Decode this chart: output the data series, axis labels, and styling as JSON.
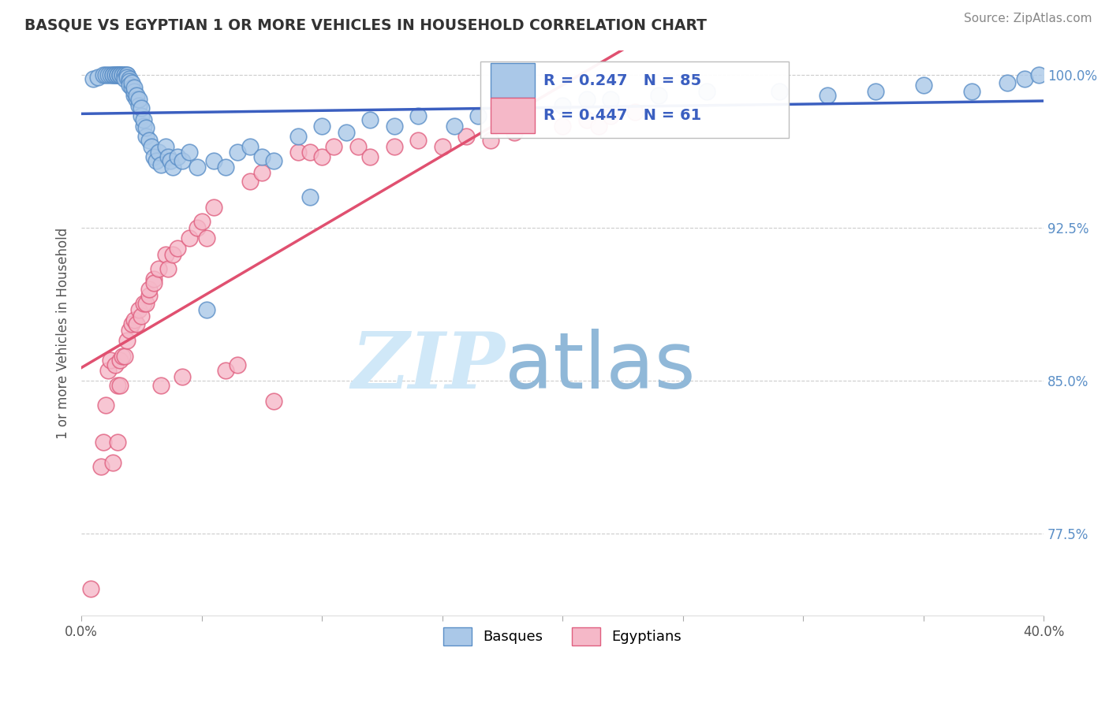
{
  "title": "BASQUE VS EGYPTIAN 1 OR MORE VEHICLES IN HOUSEHOLD CORRELATION CHART",
  "source_text": "Source: ZipAtlas.com",
  "ylabel": "1 or more Vehicles in Household",
  "xlim": [
    0.0,
    0.4
  ],
  "ylim": [
    0.735,
    1.012
  ],
  "ytick_labels": [
    "77.5%",
    "85.0%",
    "92.5%",
    "100.0%"
  ],
  "ytick_vals": [
    0.775,
    0.85,
    0.925,
    1.0
  ],
  "xtick_vals": [
    0.0,
    0.05,
    0.1,
    0.15,
    0.2,
    0.25,
    0.3,
    0.35,
    0.4
  ],
  "basque_color": "#aac8e8",
  "basque_edge_color": "#5b8fc7",
  "egyptian_color": "#f5b8c8",
  "egyptian_edge_color": "#e06080",
  "basque_line_color": "#3b5fc0",
  "egyptian_line_color": "#e05070",
  "legend_R_basque": "R = 0.247",
  "legend_N_basque": "N = 85",
  "legend_R_egyptian": "R = 0.447",
  "legend_N_egyptian": "N = 61",
  "basque_x": [
    0.005,
    0.007,
    0.009,
    0.01,
    0.011,
    0.012,
    0.013,
    0.013,
    0.014,
    0.014,
    0.015,
    0.015,
    0.015,
    0.016,
    0.016,
    0.016,
    0.017,
    0.017,
    0.018,
    0.018,
    0.018,
    0.019,
    0.019,
    0.019,
    0.02,
    0.02,
    0.02,
    0.021,
    0.021,
    0.022,
    0.022,
    0.022,
    0.023,
    0.023,
    0.024,
    0.024,
    0.025,
    0.025,
    0.026,
    0.026,
    0.027,
    0.027,
    0.028,
    0.029,
    0.03,
    0.031,
    0.032,
    0.033,
    0.035,
    0.036,
    0.037,
    0.038,
    0.04,
    0.042,
    0.045,
    0.048,
    0.052,
    0.055,
    0.06,
    0.065,
    0.07,
    0.075,
    0.08,
    0.09,
    0.095,
    0.1,
    0.11,
    0.12,
    0.13,
    0.14,
    0.155,
    0.165,
    0.2,
    0.21,
    0.22,
    0.24,
    0.26,
    0.29,
    0.31,
    0.33,
    0.35,
    0.37,
    0.385,
    0.392,
    0.398
  ],
  "basque_y": [
    0.998,
    0.999,
    1.0,
    1.0,
    1.0,
    1.0,
    1.0,
    1.0,
    1.0,
    1.0,
    1.0,
    1.0,
    1.0,
    1.0,
    1.0,
    1.0,
    1.0,
    1.0,
    1.0,
    1.0,
    0.998,
    1.0,
    1.0,
    0.999,
    0.998,
    0.997,
    0.995,
    0.994,
    0.996,
    0.99,
    0.992,
    0.994,
    0.988,
    0.99,
    0.985,
    0.988,
    0.98,
    0.984,
    0.975,
    0.978,
    0.97,
    0.974,
    0.968,
    0.965,
    0.96,
    0.958,
    0.962,
    0.956,
    0.965,
    0.96,
    0.958,
    0.955,
    0.96,
    0.958,
    0.962,
    0.955,
    0.885,
    0.958,
    0.955,
    0.962,
    0.965,
    0.96,
    0.958,
    0.97,
    0.94,
    0.975,
    0.972,
    0.978,
    0.975,
    0.98,
    0.975,
    0.98,
    0.985,
    0.988,
    0.988,
    0.99,
    0.992,
    0.992,
    0.99,
    0.992,
    0.995,
    0.992,
    0.996,
    0.998,
    1.0
  ],
  "egyptian_x": [
    0.004,
    0.008,
    0.009,
    0.01,
    0.011,
    0.012,
    0.013,
    0.014,
    0.015,
    0.015,
    0.016,
    0.016,
    0.017,
    0.018,
    0.019,
    0.02,
    0.021,
    0.022,
    0.023,
    0.024,
    0.025,
    0.026,
    0.027,
    0.028,
    0.028,
    0.03,
    0.03,
    0.032,
    0.033,
    0.035,
    0.036,
    0.038,
    0.04,
    0.042,
    0.045,
    0.048,
    0.05,
    0.052,
    0.055,
    0.06,
    0.065,
    0.07,
    0.075,
    0.08,
    0.09,
    0.095,
    0.1,
    0.105,
    0.115,
    0.12,
    0.13,
    0.14,
    0.15,
    0.16,
    0.17,
    0.18,
    0.2,
    0.21,
    0.215,
    0.22,
    0.23
  ],
  "egyptian_y": [
    0.748,
    0.808,
    0.82,
    0.838,
    0.855,
    0.86,
    0.81,
    0.858,
    0.848,
    0.82,
    0.86,
    0.848,
    0.862,
    0.862,
    0.87,
    0.875,
    0.878,
    0.88,
    0.878,
    0.885,
    0.882,
    0.888,
    0.888,
    0.892,
    0.895,
    0.9,
    0.898,
    0.905,
    0.848,
    0.912,
    0.905,
    0.912,
    0.915,
    0.852,
    0.92,
    0.925,
    0.928,
    0.92,
    0.935,
    0.855,
    0.858,
    0.948,
    0.952,
    0.84,
    0.962,
    0.962,
    0.96,
    0.965,
    0.965,
    0.96,
    0.965,
    0.968,
    0.965,
    0.97,
    0.968,
    0.972,
    0.975,
    0.978,
    0.975,
    0.98,
    0.982
  ],
  "watermark_zip": "ZIP",
  "watermark_atlas": "atlas",
  "watermark_color_zip": "#d0e8f8",
  "watermark_color_atlas": "#90b8d8",
  "legend_label_basques": "Basques",
  "legend_label_egyptians": "Egyptians"
}
